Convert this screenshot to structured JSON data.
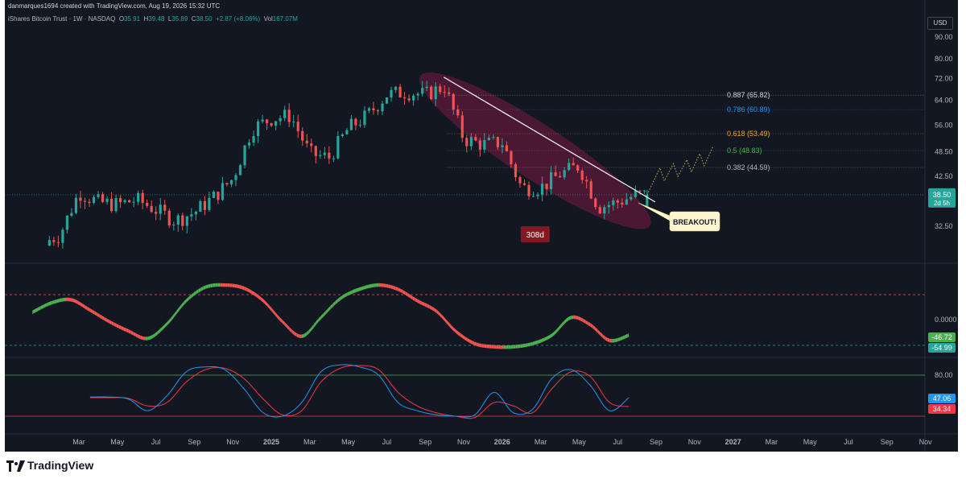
{
  "attribution": "danmarques1694 created with TradingView.com, Aug 19, 2026 15:32 UTC",
  "legend": {
    "symbol": "iShares Bitcoin Trust · 1W · NASDAQ",
    "open_label": "O",
    "open": "35.91",
    "high_label": "H",
    "high": "39.48",
    "low_label": "L",
    "low": "35.89",
    "close_label": "C",
    "close": "38.50",
    "change": "+2.87 (+8.06%)",
    "vol_label": "Vol",
    "vol": "167.07M"
  },
  "currency": "USD",
  "colors": {
    "background": "#131722",
    "up": "#26a69a",
    "down": "#ef5350",
    "trendline": "#ffffff",
    "channel": "#8e1a4a",
    "oscillator_up": "#4caf50",
    "oscillator_down": "#ef5350",
    "stoch_k": "#2196f3",
    "stoch_d": "#f23645",
    "fib_887": "#d1d4dc",
    "fib_786": "#2196f3",
    "fib_618": "#f5a623",
    "fib_5": "#4caf50",
    "fib_382": "#b2b5be"
  },
  "chart_data": [
    {
      "type": "candlestick",
      "price_axis": {
        "ticks": [
          "90.00",
          "80.00",
          "72.00",
          "64.00",
          "56.00",
          "48.50",
          "42.50",
          "32.50"
        ],
        "scale": "log",
        "range": [
          28,
          95
        ]
      },
      "time_axis": [
        "Mar",
        "May",
        "Jul",
        "Sep",
        "Nov",
        "2025",
        "Mar",
        "May",
        "Jul",
        "Sep",
        "Nov",
        "2026",
        "Mar",
        "May",
        "Jul",
        "Sep",
        "Nov",
        "2027",
        "Mar",
        "May",
        "Jul",
        "Sep",
        "Nov"
      ],
      "anchors": [
        [
          "2024-01",
          29.5
        ],
        [
          "2024-02",
          31
        ],
        [
          "2024-03",
          39
        ],
        [
          "2024-04",
          37
        ],
        [
          "2024-05",
          36.5
        ],
        [
          "2024-06",
          37.5
        ],
        [
          "2024-07",
          35.5
        ],
        [
          "2024-08",
          33.5
        ],
        [
          "2024-09",
          35
        ],
        [
          "2024-10",
          38
        ],
        [
          "2024-11",
          42
        ],
        [
          "2024-12",
          55
        ],
        [
          "2025-01",
          58
        ],
        [
          "2025-02",
          59
        ],
        [
          "2025-03",
          48
        ],
        [
          "2025-04",
          47
        ],
        [
          "2025-05",
          55
        ],
        [
          "2025-06",
          59
        ],
        [
          "2025-07",
          66
        ],
        [
          "2025-08",
          67
        ],
        [
          "2025-09",
          66
        ],
        [
          "2025-10",
          69
        ],
        [
          "2025-11",
          52
        ],
        [
          "2025-12",
          50.5
        ],
        [
          "2026-01",
          51
        ],
        [
          "2026-02",
          40
        ],
        [
          "2026-03",
          40
        ],
        [
          "2026-04",
          43
        ],
        [
          "2026-05",
          45
        ],
        [
          "2026-06",
          36
        ],
        [
          "2026-07",
          37
        ],
        [
          "2026-08",
          38.5
        ]
      ],
      "last_candle": {
        "date": "2026-08-17",
        "open": 35.91,
        "high": 39.48,
        "low": 35.89,
        "close": 38.5
      },
      "trendline": {
        "from": [
          "2025-09-30",
          72.5
        ],
        "to": [
          "2026-08-17",
          38
        ]
      },
      "time_span_label": "308d",
      "fib_levels": [
        {
          "ratio": "0.887",
          "price": 65.82,
          "label": "0.887 (65.82)"
        },
        {
          "ratio": "0.786",
          "price": 60.89,
          "label": "0.786 (60.89)"
        },
        {
          "ratio": "0.618",
          "price": 53.49,
          "label": "0.618 (53.49)"
        },
        {
          "ratio": "0.5",
          "price": 48.83,
          "label": "0.5 (48.83)"
        },
        {
          "ratio": "0.382",
          "price": 44.59,
          "label": "0.382 (44.59)"
        }
      ],
      "projection": [
        [
          "2026-08-24",
          40.5
        ],
        [
          "2026-09-07",
          44.5
        ],
        [
          "2026-09-14",
          41.5
        ],
        [
          "2026-09-28",
          45.5
        ],
        [
          "2026-10-05",
          42.5
        ],
        [
          "2026-10-19",
          46.5
        ],
        [
          "2026-10-26",
          43.5
        ],
        [
          "2026-11-09",
          48
        ],
        [
          "2026-11-16",
          45
        ],
        [
          "2026-11-30",
          50
        ]
      ],
      "annotation": "BREAKOUT!",
      "last_price_label": "38.50",
      "countdown_label": "2d 5h"
    },
    {
      "type": "oscillator",
      "zero_label": "0.0000",
      "value_labels": [
        "-46.72",
        "-54.99"
      ],
      "anchors": [
        [
          "2024-01",
          0.35
        ],
        [
          "2024-02",
          0.8
        ],
        [
          "2024-03",
          0.95
        ],
        [
          "2024-04",
          0.45
        ],
        [
          "2024-05",
          -0.1
        ],
        [
          "2024-06",
          -0.55
        ],
        [
          "2024-07",
          -0.9
        ],
        [
          "2024-08",
          -0.2
        ],
        [
          "2024-09",
          0.9
        ],
        [
          "2024-10",
          1.55
        ],
        [
          "2024-11",
          1.65
        ],
        [
          "2024-12",
          1.5
        ],
        [
          "2025-01",
          0.9
        ],
        [
          "2025-02",
          -0.1
        ],
        [
          "2025-03",
          -0.8
        ],
        [
          "2025-04",
          0.1
        ],
        [
          "2025-05",
          1.0
        ],
        [
          "2025-06",
          1.45
        ],
        [
          "2025-07",
          1.65
        ],
        [
          "2025-08",
          1.45
        ],
        [
          "2025-09",
          0.9
        ],
        [
          "2025-10",
          0.4
        ],
        [
          "2025-11",
          -0.55
        ],
        [
          "2025-12",
          -1.15
        ],
        [
          "2026-01",
          -1.3
        ],
        [
          "2026-02",
          -1.3
        ],
        [
          "2026-03",
          -1.15
        ],
        [
          "2026-04",
          -0.75
        ],
        [
          "2026-05",
          0.1
        ],
        [
          "2026-06",
          -0.25
        ],
        [
          "2026-07",
          -1.0
        ],
        [
          "2026-08",
          -0.75
        ]
      ]
    },
    {
      "type": "stochastic",
      "level_labels": [
        "80.00"
      ],
      "k_label": "47.06",
      "d_label": "34.34",
      "levels": [
        80,
        20
      ],
      "k": [
        [
          "2024-04",
          48
        ],
        [
          "2024-05",
          48
        ],
        [
          "2024-06",
          45
        ],
        [
          "2024-07",
          28
        ],
        [
          "2024-08",
          50
        ],
        [
          "2024-09",
          85
        ],
        [
          "2024-10",
          92
        ],
        [
          "2024-11",
          88
        ],
        [
          "2024-12",
          60
        ],
        [
          "2025-01",
          25
        ],
        [
          "2025-02",
          20
        ],
        [
          "2025-03",
          40
        ],
        [
          "2025-04",
          85
        ],
        [
          "2025-05",
          95
        ],
        [
          "2025-06",
          92
        ],
        [
          "2025-07",
          80
        ],
        [
          "2025-08",
          40
        ],
        [
          "2025-09",
          28
        ],
        [
          "2025-10",
          22
        ],
        [
          "2025-11",
          20
        ],
        [
          "2025-12",
          22
        ],
        [
          "2026-01",
          55
        ],
        [
          "2026-02",
          25
        ],
        [
          "2026-03",
          30
        ],
        [
          "2026-04",
          75
        ],
        [
          "2026-05",
          88
        ],
        [
          "2026-06",
          65
        ],
        [
          "2026-07",
          28
        ],
        [
          "2026-08",
          47
        ]
      ],
      "d": [
        [
          "2024-04",
          47
        ],
        [
          "2024-05",
          47
        ],
        [
          "2024-06",
          46
        ],
        [
          "2024-07",
          35
        ],
        [
          "2024-08",
          40
        ],
        [
          "2024-09",
          70
        ],
        [
          "2024-10",
          88
        ],
        [
          "2024-11",
          90
        ],
        [
          "2024-12",
          75
        ],
        [
          "2025-01",
          45
        ],
        [
          "2025-02",
          22
        ],
        [
          "2025-03",
          28
        ],
        [
          "2025-04",
          70
        ],
        [
          "2025-05",
          90
        ],
        [
          "2025-06",
          94
        ],
        [
          "2025-07",
          88
        ],
        [
          "2025-08",
          55
        ],
        [
          "2025-09",
          35
        ],
        [
          "2025-10",
          25
        ],
        [
          "2025-11",
          20
        ],
        [
          "2025-12",
          18
        ],
        [
          "2026-01",
          40
        ],
        [
          "2026-02",
          35
        ],
        [
          "2026-03",
          25
        ],
        [
          "2026-04",
          60
        ],
        [
          "2026-05",
          85
        ],
        [
          "2026-06",
          78
        ],
        [
          "2026-07",
          40
        ],
        [
          "2026-08",
          34
        ]
      ]
    }
  ],
  "footer": {
    "brand": "TradingView"
  }
}
